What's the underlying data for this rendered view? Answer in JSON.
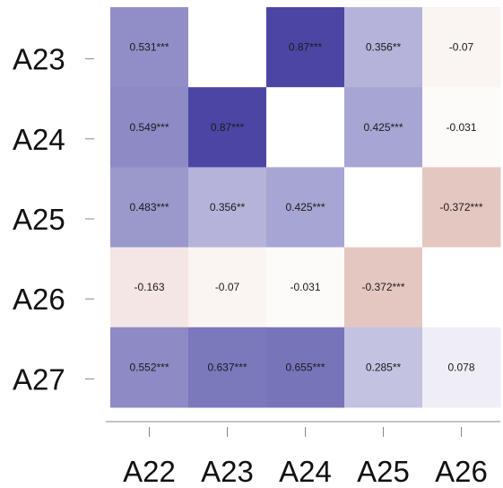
{
  "chart_data": {
    "type": "heatmap",
    "title": "",
    "xlabel": "",
    "ylabel": "",
    "x_categories": [
      "A22",
      "A23",
      "A24",
      "A25",
      "A26"
    ],
    "y_categories": [
      "A23",
      "A24",
      "A25",
      "A26",
      "A27"
    ],
    "grid": false,
    "colors": {
      "positive": "#4b46a4",
      "neutral": "#ffffff",
      "negative": "#c27b6f",
      "axis": "#888888",
      "text": "#1a1a1a"
    },
    "cells": [
      [
        {
          "value": 0.531,
          "label": "0.531***"
        },
        {
          "value": null,
          "label": ""
        },
        {
          "value": 0.87,
          "label": "0.87***"
        },
        {
          "value": 0.356,
          "label": "0.356**"
        },
        {
          "value": -0.07,
          "label": "-0.07"
        }
      ],
      [
        {
          "value": 0.549,
          "label": "0.549***"
        },
        {
          "value": 0.87,
          "label": "0.87***"
        },
        {
          "value": null,
          "label": ""
        },
        {
          "value": 0.425,
          "label": "0.425***"
        },
        {
          "value": -0.031,
          "label": "-0.031"
        }
      ],
      [
        {
          "value": 0.483,
          "label": "0.483***"
        },
        {
          "value": 0.356,
          "label": "0.356**"
        },
        {
          "value": 0.425,
          "label": "0.425***"
        },
        {
          "value": null,
          "label": ""
        },
        {
          "value": -0.372,
          "label": "-0.372***"
        }
      ],
      [
        {
          "value": -0.163,
          "label": "-0.163"
        },
        {
          "value": -0.07,
          "label": "-0.07"
        },
        {
          "value": -0.031,
          "label": "-0.031"
        },
        {
          "value": -0.372,
          "label": "-0.372***"
        },
        {
          "value": null,
          "label": ""
        }
      ],
      [
        {
          "value": 0.552,
          "label": "0.552***"
        },
        {
          "value": 0.637,
          "label": "0.637***"
        },
        {
          "value": 0.655,
          "label": "0.655***"
        },
        {
          "value": 0.285,
          "label": "0.285**"
        },
        {
          "value": 0.078,
          "label": "0.078"
        }
      ]
    ]
  }
}
